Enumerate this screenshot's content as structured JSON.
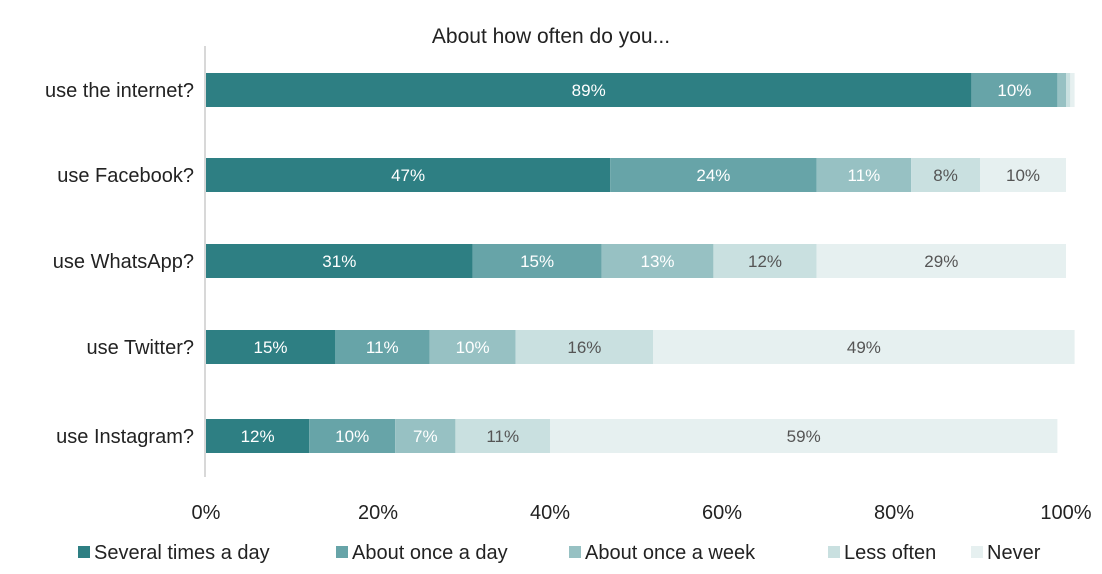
{
  "chart_data": {
    "type": "bar",
    "orientation": "horizontal",
    "stacked": true,
    "title": "About how often do you...",
    "categories": [
      "use the internet?",
      "use Facebook?",
      "use WhatsApp?",
      "use Twitter?",
      "use Instagram?"
    ],
    "series": [
      {
        "name": "Several times a day",
        "values": [
          89,
          47,
          31,
          15,
          12
        ],
        "color": "#2e7f83",
        "label_color": "#ffffff"
      },
      {
        "name": "About once a day",
        "values": [
          10,
          24,
          15,
          11,
          10
        ],
        "color": "#67a4a8",
        "label_color": "#ffffff"
      },
      {
        "name": "About once a week",
        "values": [
          1,
          11,
          13,
          10,
          7
        ],
        "color": "#97c1c3",
        "label_color": "#ffffff"
      },
      {
        "name": "Less often",
        "values": [
          0.5,
          8,
          12,
          16,
          11
        ],
        "color": "#c9e0e0",
        "label_color": "#555555"
      },
      {
        "name": "Never",
        "values": [
          0.5,
          10,
          29,
          49,
          59
        ],
        "color": "#e6f0f0",
        "label_color": "#555555"
      }
    ],
    "data_labels": [
      [
        "89%",
        "10%",
        "",
        "",
        ""
      ],
      [
        "47%",
        "24%",
        "11%",
        "8%",
        "10%"
      ],
      [
        "31%",
        "15%",
        "13%",
        "12%",
        "29%"
      ],
      [
        "15%",
        "11%",
        "10%",
        "16%",
        "49%"
      ],
      [
        "12%",
        "10%",
        "7%",
        "11%",
        "59%"
      ]
    ],
    "x_ticks": [
      "0%",
      "20%",
      "40%",
      "60%",
      "80%",
      "100%"
    ],
    "xlim": [
      0,
      100
    ],
    "grid": false,
    "legend_position": "bottom"
  }
}
